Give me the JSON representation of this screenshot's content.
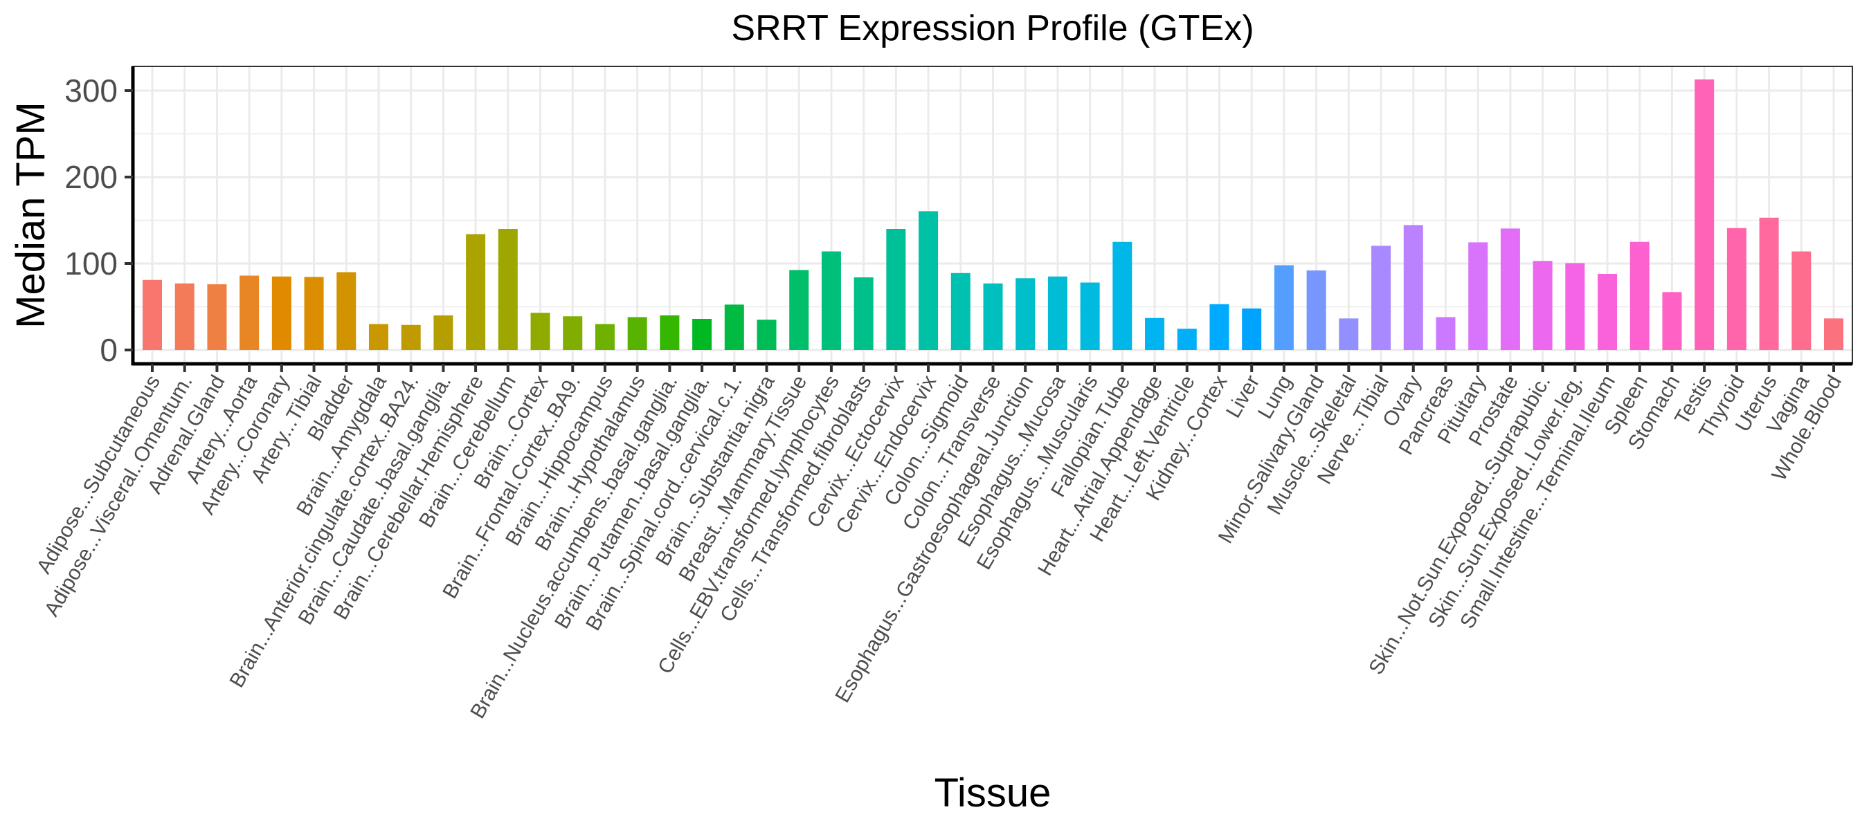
{
  "chart_data": {
    "type": "bar",
    "title": "SRRT Expression Profile (GTEx)",
    "xlabel": "Tissue",
    "ylabel": "Median TPM",
    "ylim": [
      0,
      325
    ],
    "yticks": [
      0,
      100,
      200,
      300
    ],
    "grid": true,
    "legend": "none",
    "palette": "ggplot-hue",
    "categories": [
      "Adipose...Subcutaneous",
      "Adipose...Visceral..Omentum.",
      "Adrenal.Gland",
      "Artery...Aorta",
      "Artery...Coronary",
      "Artery...Tibial",
      "Bladder",
      "Brain...Amygdala",
      "Brain...Anterior.cingulate.cortex..BA24.",
      "Brain...Caudate..basal.ganglia.",
      "Brain...Cerebellar.Hemisphere",
      "Brain...Cerebellum",
      "Brain...Cortex",
      "Brain...Frontal.Cortex..BA9.",
      "Brain...Hippocampus",
      "Brain...Hypothalamus",
      "Brain...Nucleus.accumbens..basal.ganglia.",
      "Brain...Putamen..basal.ganglia.",
      "Brain...Spinal.cord..cervical.c.1.",
      "Brain...Substantia.nigra",
      "Breast...Mammary.Tissue",
      "Cells...EBV.transformed.lymphocytes",
      "Cells...Transformed.fibroblasts",
      "Cervix...Ectocervix",
      "Cervix...Endocervix",
      "Colon...Sigmoid",
      "Colon...Transverse",
      "Esophagus...Gastroesophageal.Junction",
      "Esophagus...Mucosa",
      "Esophagus...Muscularis",
      "Fallopian.Tube",
      "Heart...Atrial.Appendage",
      "Heart...Left.Ventricle",
      "Kidney...Cortex",
      "Liver",
      "Lung",
      "Minor.Salivary.Gland",
      "Muscle...Skeletal",
      "Nerve...Tibial",
      "Ovary",
      "Pancreas",
      "Pituitary",
      "Prostate",
      "Skin...Not.Sun.Exposed..Suprapubic.",
      "Skin...Sun.Exposed..Lower.leg.",
      "Small.Intestine...Terminal.Ileum",
      "Spleen",
      "Stomach",
      "Testis",
      "Thyroid",
      "Uterus",
      "Vagina",
      "Whole.Blood"
    ],
    "values": [
      81,
      77,
      76,
      86,
      85,
      84.5,
      90,
      30,
      29,
      40,
      134,
      140,
      43,
      39,
      30,
      38,
      40,
      36,
      52.5,
      35,
      92.5,
      114,
      84,
      140,
      160.5,
      89,
      77,
      83,
      85,
      78,
      125,
      37,
      24.5,
      53,
      48,
      98,
      92,
      36.5,
      120.5,
      144.5,
      38,
      124.5,
      140.5,
      103,
      100.5,
      88,
      125,
      67,
      313,
      141,
      153,
      114,
      36.5
    ]
  }
}
